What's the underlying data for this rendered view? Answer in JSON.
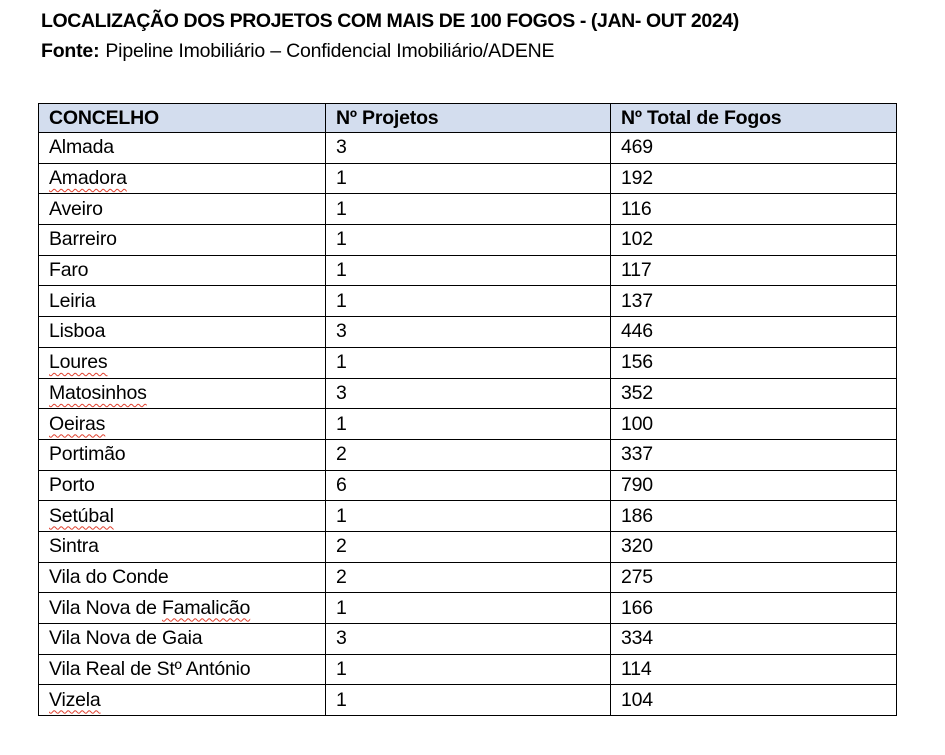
{
  "title": "LOCALIZAÇÃO DOS PROJETOS COM MAIS DE 100 FOGOS - (JAN- OUT 2024)",
  "source": {
    "label": "Fonte:",
    "text": "Pipeline Imobiliário – Confidencial Imobiliário/ADENE"
  },
  "table": {
    "headers": [
      "CONCELHO",
      "Nº Projetos",
      "Nº Total de Fogos"
    ],
    "rows": [
      {
        "concelho": "Almada",
        "projetos": "3",
        "fogos": "469",
        "misspelled": ""
      },
      {
        "concelho": "Amadora",
        "projetos": "1",
        "fogos": "192",
        "misspelled": "Amadora"
      },
      {
        "concelho": "Aveiro",
        "projetos": "1",
        "fogos": "116",
        "misspelled": ""
      },
      {
        "concelho": "Barreiro",
        "projetos": "1",
        "fogos": "102",
        "misspelled": ""
      },
      {
        "concelho": "Faro",
        "projetos": "1",
        "fogos": "117",
        "misspelled": ""
      },
      {
        "concelho": "Leiria",
        "projetos": "1",
        "fogos": "137",
        "misspelled": ""
      },
      {
        "concelho": "Lisboa",
        "projetos": "3",
        "fogos": "446",
        "misspelled": ""
      },
      {
        "concelho": "Loures",
        "projetos": "1",
        "fogos": "156",
        "misspelled": "Loures"
      },
      {
        "concelho": "Matosinhos",
        "projetos": "3",
        "fogos": "352",
        "misspelled": "Matosinhos"
      },
      {
        "concelho": "Oeiras",
        "projetos": "1",
        "fogos": "100",
        "misspelled": "Oeiras"
      },
      {
        "concelho": "Portimão",
        "projetos": "2",
        "fogos": "337",
        "misspelled": ""
      },
      {
        "concelho": "Porto",
        "projetos": "6",
        "fogos": "790",
        "misspelled": ""
      },
      {
        "concelho": "Setúbal",
        "projetos": "1",
        "fogos": "186",
        "misspelled": "Setúbal"
      },
      {
        "concelho": "Sintra",
        "projetos": "2",
        "fogos": "320",
        "misspelled": ""
      },
      {
        "concelho": "Vila do Conde",
        "projetos": "2",
        "fogos": "275",
        "misspelled": ""
      },
      {
        "concelho": "Vila Nova de Famalicão",
        "projetos": "1",
        "fogos": "166",
        "misspelled": "Famalicão"
      },
      {
        "concelho": "Vila Nova de Gaia",
        "projetos": "3",
        "fogos": "334",
        "misspelled": ""
      },
      {
        "concelho": "Vila Real de Stº António",
        "projetos": "1",
        "fogos": "114",
        "misspelled": ""
      },
      {
        "concelho": "Vizela",
        "projetos": "1",
        "fogos": "104",
        "misspelled": "Vizela"
      }
    ]
  },
  "colors": {
    "page_bg": "#ffffff",
    "text": "#000000",
    "border": "#000000",
    "header_bg": "#d3ddee",
    "spellcheck_underline": "#e0402e"
  }
}
